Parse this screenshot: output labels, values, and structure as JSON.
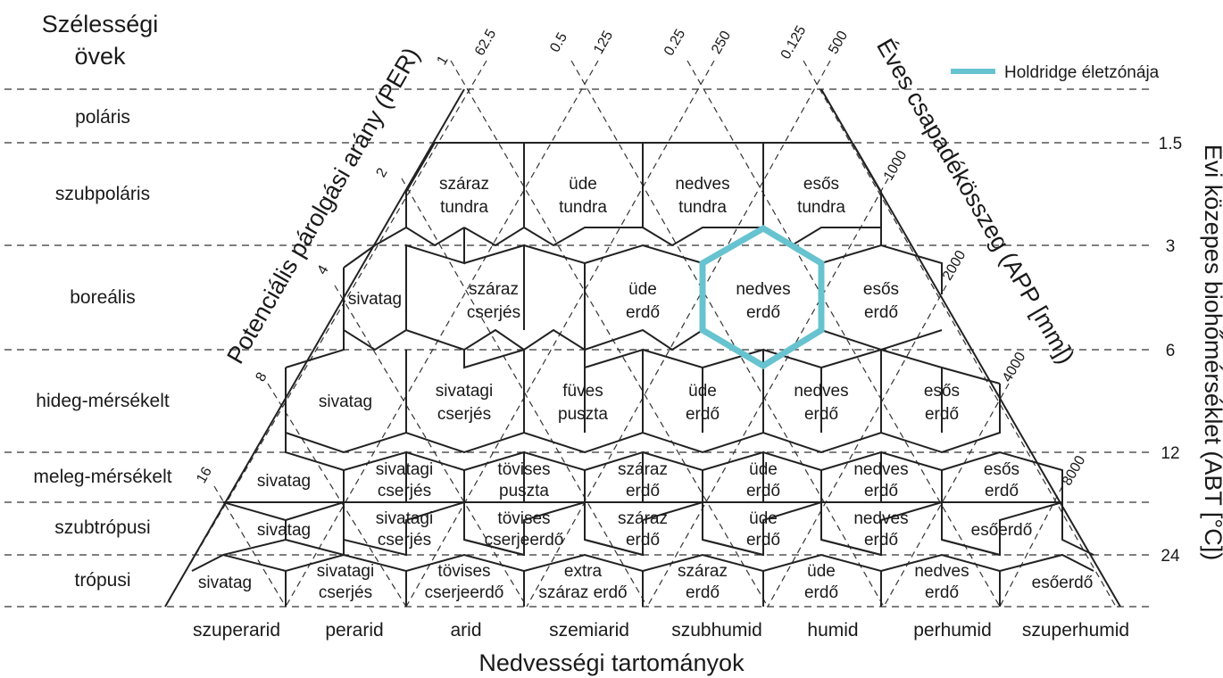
{
  "header": {
    "line1": "Szélességi",
    "line2": "övek"
  },
  "legend": {
    "label": "Holdridge életzónája",
    "color": "#67c3d0"
  },
  "latitude_belts": [
    "poláris",
    "szubpoláris",
    "boreális",
    "hideg-mérsékelt",
    "meleg-mérsékelt",
    "szubtrópusi",
    "trópusi"
  ],
  "humidity_provinces": [
    "szuperarid",
    "perarid",
    "arid",
    "szemiarid",
    "szubhumid",
    "humid",
    "perhumid",
    "szuperhumid"
  ],
  "axes": {
    "bottom": "Nedvességi tartományok",
    "left": "Potenciális párolgási arány (PER)",
    "top_right": "Éves csapadékösszeg (APP [mm])",
    "right": "Évi közepes biohőmérséklet (ABT [°C])"
  },
  "temperature_ticks": [
    "1.5",
    "3",
    "6",
    "12",
    "24"
  ],
  "per_ticks": [
    "1",
    "2",
    "4",
    "8",
    "16"
  ],
  "per_top_ticks": [
    "0.5",
    "0.25",
    "0.125"
  ],
  "app_top_ticks": [
    "62.5",
    "125",
    "250",
    "500"
  ],
  "app_side_ticks": [
    "1000",
    "2000",
    "4000",
    "8000"
  ],
  "zones": {
    "r1": [
      [
        "száraz",
        "tundra"
      ],
      [
        "üde",
        "tundra"
      ],
      [
        "nedves",
        "tundra"
      ],
      [
        "esős",
        "tundra"
      ]
    ],
    "r2": [
      [
        "sivatag"
      ],
      [
        "száraz",
        "cserjés"
      ],
      [
        "üde",
        "erdő"
      ],
      [
        "nedves",
        "erdő"
      ],
      [
        "esős",
        "erdő"
      ]
    ],
    "r3": [
      [
        "sivatag"
      ],
      [
        "sivatagi",
        "cserjés"
      ],
      [
        "füves",
        "puszta"
      ],
      [
        "üde",
        "erdő"
      ],
      [
        "nedves",
        "erdő"
      ],
      [
        "esős",
        "erdő"
      ]
    ],
    "r4": [
      [
        "sivatag"
      ],
      [
        "sivatagi",
        "cserjés"
      ],
      [
        "tövises",
        "puszta"
      ],
      [
        "száraz",
        "erdő"
      ],
      [
        "üde",
        "erdő"
      ],
      [
        "nedves",
        "erdő"
      ],
      [
        "esős",
        "erdő"
      ]
    ],
    "r5": [
      [
        "sivatag"
      ],
      [
        "sivatagi",
        "cserjés"
      ],
      [
        "tövises",
        "cserjeerdő"
      ],
      [
        "száraz",
        "erdő"
      ],
      [
        "üde",
        "erdő"
      ],
      [
        "nedves",
        "erdő"
      ],
      [
        "esőerdő"
      ]
    ],
    "r6": [
      [
        "sivatag"
      ],
      [
        "sivatagi",
        "cserjés"
      ],
      [
        "tövises",
        "cserjeerdő"
      ],
      [
        "extra",
        "száraz erdő"
      ],
      [
        "száraz",
        "erdő"
      ],
      [
        "üde",
        "erdő"
      ],
      [
        "nedves",
        "erdő"
      ],
      [
        "esőerdő"
      ]
    ]
  }
}
